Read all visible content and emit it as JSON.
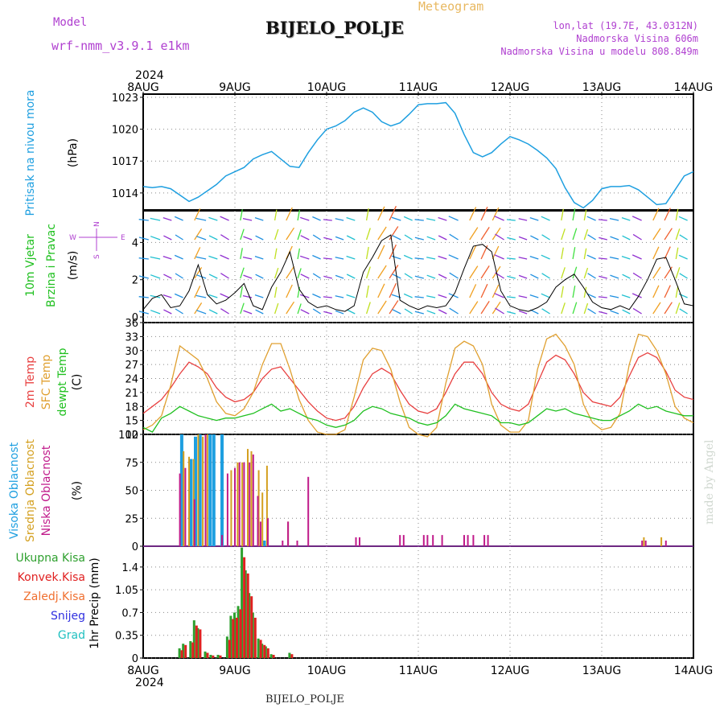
{
  "header": {
    "model_label": "Model",
    "model_name": "wrf-nmm_v3.9.1  e1km",
    "product": "Meteogram",
    "station": "BIJELO_POLJE",
    "coords": "lon,lat (19.7E, 43.0312N)",
    "elevation": "Nadmorska Visina 606m",
    "model_elevation": "Nadmorska Visina u modelu 808.849m",
    "footer_station": "BIJELO_POLJE",
    "credit": "made by Angel"
  },
  "time_axis": {
    "year": "2024",
    "ticks": [
      "8AUG",
      "9AUG",
      "10AUG",
      "11AUG",
      "12AUG",
      "13AUG",
      "14AUG"
    ]
  },
  "colors": {
    "pressure": "#1e9fe0",
    "temp2m": "#e84040",
    "sfc_temp": "#e0a030",
    "dewpoint": "#20c020",
    "high_cloud": "#1e9fe0",
    "mid_cloud": "#d4a020",
    "low_cloud": "#c01a8a",
    "total_precip": "#2ea02e",
    "conv_precip": "#e02020",
    "freezing_precip": "#f07030",
    "snow": "#3030e0",
    "hail": "#20c0c0",
    "wind_label": "#b040d0"
  },
  "chart_data": [
    {
      "type": "line",
      "id": "pressure",
      "ylabel": [
        "Pritisak na nivou mora",
        "(hPa)"
      ],
      "yticks": [
        1014,
        1017,
        1020,
        1023
      ],
      "ylim": [
        1012.4,
        1023.3
      ],
      "x_days": [
        0,
        0.1,
        0.2,
        0.3,
        0.4,
        0.5,
        0.6,
        0.7,
        0.8,
        0.9,
        1.0,
        1.1,
        1.2,
        1.3,
        1.4,
        1.5,
        1.6,
        1.7,
        1.8,
        1.9,
        2.0,
        2.1,
        2.2,
        2.3,
        2.4,
        2.5,
        2.6,
        2.7,
        2.8,
        2.9,
        3.0,
        3.1,
        3.2,
        3.3,
        3.4,
        3.5,
        3.6,
        3.7,
        3.8,
        3.9,
        4.0,
        4.1,
        4.2,
        4.3,
        4.4,
        4.5,
        4.6,
        4.7,
        4.8,
        4.9,
        5.0,
        5.1,
        5.2,
        5.3,
        5.4,
        5.5,
        5.6,
        5.7,
        5.8,
        5.9,
        6.0
      ],
      "series": [
        {
          "values": [
            1014.6,
            1014.5,
            1014.6,
            1014.4,
            1013.8,
            1013.2,
            1013.6,
            1014.2,
            1014.8,
            1015.6,
            1016.0,
            1016.4,
            1017.2,
            1017.6,
            1017.9,
            1017.2,
            1016.5,
            1016.4,
            1017.8,
            1019.0,
            1020.0,
            1020.3,
            1020.8,
            1021.6,
            1022.0,
            1021.6,
            1020.7,
            1020.3,
            1020.6,
            1021.4,
            1022.3,
            1022.4,
            1022.4,
            1022.5,
            1021.5,
            1019.5,
            1017.8,
            1017.4,
            1017.8,
            1018.6,
            1019.3,
            1019.0,
            1018.6,
            1018.0,
            1017.3,
            1016.3,
            1014.5,
            1013.1,
            1012.6,
            1013.3,
            1014.4,
            1014.6,
            1014.6,
            1014.7,
            1014.3,
            1013.6,
            1012.9,
            1013.0,
            1014.3,
            1015.6,
            1016.0
          ]
        }
      ]
    },
    {
      "type": "line",
      "id": "wind",
      "ylabel": [
        "10m Vjetar",
        "Brzina i Pravac",
        "(m/s)"
      ],
      "compass": [
        "N",
        "E",
        "W",
        "S"
      ],
      "yticks": [
        0,
        2,
        4
      ],
      "ylim": [
        -0.3,
        5.7
      ],
      "x_days": [
        0,
        0.1,
        0.2,
        0.3,
        0.4,
        0.5,
        0.6,
        0.7,
        0.8,
        0.9,
        1.0,
        1.1,
        1.2,
        1.3,
        1.4,
        1.5,
        1.6,
        1.7,
        1.8,
        1.9,
        2.0,
        2.1,
        2.2,
        2.3,
        2.4,
        2.5,
        2.6,
        2.7,
        2.8,
        2.9,
        3.0,
        3.1,
        3.2,
        3.3,
        3.4,
        3.5,
        3.6,
        3.7,
        3.8,
        3.9,
        4.0,
        4.1,
        4.2,
        4.3,
        4.4,
        4.5,
        4.6,
        4.7,
        4.8,
        4.9,
        5.0,
        5.1,
        5.2,
        5.3,
        5.4,
        5.5,
        5.6,
        5.7,
        5.8,
        5.9,
        6.0
      ],
      "series": [
        {
          "values": [
            0.4,
            1.0,
            1.2,
            0.5,
            0.6,
            1.4,
            2.8,
            1.2,
            0.7,
            0.9,
            1.3,
            1.8,
            0.6,
            0.4,
            1.6,
            2.4,
            3.5,
            1.5,
            0.8,
            0.5,
            0.6,
            0.4,
            0.3,
            0.6,
            2.4,
            3.2,
            4.1,
            4.4,
            0.9,
            0.6,
            0.4,
            0.6,
            0.5,
            0.6,
            1.3,
            2.6,
            3.8,
            3.9,
            3.5,
            1.4,
            0.6,
            0.4,
            0.3,
            0.5,
            0.8,
            1.6,
            2.0,
            2.3,
            1.6,
            0.8,
            0.5,
            0.4,
            0.6,
            0.4,
            1.1,
            2.0,
            3.1,
            3.2,
            2.0,
            0.7,
            0.6
          ]
        }
      ]
    },
    {
      "type": "line",
      "id": "temperature",
      "ylabel": [
        "2m Temp",
        "SFC Temp",
        "dewpt Temp",
        "(C)"
      ],
      "yticks": [
        12,
        15,
        18,
        21,
        24,
        27,
        30,
        33,
        36
      ],
      "ylim": [
        12,
        36
      ],
      "x_days": [
        0,
        0.1,
        0.2,
        0.3,
        0.4,
        0.5,
        0.6,
        0.7,
        0.8,
        0.9,
        1.0,
        1.1,
        1.2,
        1.3,
        1.4,
        1.5,
        1.6,
        1.7,
        1.8,
        1.9,
        2.0,
        2.1,
        2.2,
        2.3,
        2.4,
        2.5,
        2.6,
        2.7,
        2.8,
        2.9,
        3.0,
        3.1,
        3.2,
        3.3,
        3.4,
        3.5,
        3.6,
        3.7,
        3.8,
        3.9,
        4.0,
        4.1,
        4.2,
        4.3,
        4.4,
        4.5,
        4.6,
        4.7,
        4.8,
        4.9,
        5.0,
        5.1,
        5.2,
        5.3,
        5.4,
        5.5,
        5.6,
        5.7,
        5.8,
        5.9,
        6.0
      ],
      "series": [
        {
          "name": "2m Temp",
          "color_key": "temp2m",
          "values": [
            16.5,
            18.0,
            19.5,
            22.0,
            25.0,
            27.5,
            26.5,
            25.0,
            22.0,
            20.0,
            19.0,
            19.5,
            21.0,
            24.0,
            26.0,
            26.5,
            24.0,
            21.5,
            19.0,
            17.0,
            15.5,
            15.0,
            15.5,
            18.0,
            22.0,
            25.0,
            26.2,
            25.0,
            21.5,
            18.5,
            17.0,
            16.5,
            17.5,
            21.0,
            25.0,
            27.5,
            27.5,
            25.0,
            21.0,
            18.5,
            17.5,
            17.0,
            18.5,
            23.0,
            27.5,
            29.0,
            28.0,
            25.0,
            21.0,
            19.0,
            18.5,
            18.0,
            20.0,
            24.5,
            28.5,
            29.5,
            28.5,
            25.5,
            21.5,
            20.0,
            19.5
          ]
        },
        {
          "name": "SFC Temp",
          "color_key": "sfc_temp",
          "values": [
            13.0,
            14.0,
            16.0,
            22.5,
            31.0,
            29.5,
            28.0,
            24.0,
            19.0,
            16.5,
            16.0,
            17.5,
            21.0,
            27.0,
            31.5,
            31.5,
            26.0,
            19.5,
            15.0,
            12.5,
            12.0,
            12.0,
            13.0,
            20.0,
            28.0,
            30.5,
            30.0,
            26.0,
            19.0,
            13.5,
            12.0,
            11.5,
            13.5,
            23.0,
            30.5,
            32.0,
            31.0,
            27.0,
            18.5,
            14.0,
            12.5,
            12.5,
            15.0,
            26.0,
            32.5,
            33.5,
            31.0,
            27.0,
            18.5,
            14.5,
            13.0,
            13.5,
            16.5,
            27.0,
            33.5,
            33.0,
            30.0,
            25.0,
            18.0,
            15.5,
            14.5
          ]
        },
        {
          "name": "dewpt Temp",
          "color_key": "dewpoint",
          "values": [
            13.5,
            12.5,
            15.5,
            16.5,
            18.0,
            17.0,
            16.0,
            15.5,
            15.0,
            15.5,
            15.5,
            16.0,
            16.5,
            17.5,
            18.5,
            17.0,
            17.5,
            16.5,
            15.5,
            15.0,
            14.0,
            13.5,
            14.0,
            15.0,
            17.0,
            18.0,
            17.5,
            16.5,
            16.0,
            15.5,
            14.5,
            14.0,
            14.5,
            16.0,
            18.5,
            17.5,
            17.0,
            16.5,
            16.0,
            14.5,
            14.5,
            14.0,
            14.5,
            16.0,
            17.5,
            17.0,
            17.5,
            16.5,
            16.0,
            15.5,
            15.0,
            15.0,
            16.0,
            17.0,
            18.5,
            17.5,
            18.0,
            17.0,
            16.5,
            16.0,
            16.0
          ]
        }
      ]
    },
    {
      "type": "bar",
      "id": "cloud",
      "ylabel": [
        "Visoka Oblacnost",
        "Srednja Oblacnost",
        "Niska Oblacnost",
        "(%)"
      ],
      "yticks": [
        0,
        25,
        50,
        75,
        100
      ],
      "ylim": [
        0,
        100
      ],
      "series": [
        {
          "name": "Visoka Oblacnost",
          "color_key": "high_cloud",
          "x_days": [
            0.42,
            0.52,
            0.57,
            0.62,
            0.73,
            0.77,
            0.86,
            0.98,
            1.22,
            1.32
          ],
          "values": [
            100,
            78,
            98,
            100,
            100,
            100,
            100,
            0,
            0,
            5
          ]
        },
        {
          "name": "Srednja Oblacnost",
          "color_key": "mid_cloud",
          "x_days": [
            0.44,
            0.5,
            0.55,
            0.6,
            0.65,
            0.7,
            0.96,
            1.03,
            1.08,
            1.14,
            1.18,
            1.26,
            1.3,
            1.35,
            1.58,
            5.46,
            5.65
          ],
          "values": [
            85,
            80,
            78,
            100,
            98,
            100,
            68,
            75,
            75,
            87,
            85,
            68,
            48,
            72,
            22,
            8,
            8
          ]
        },
        {
          "name": "Niska Oblacnost",
          "color_key": "low_cloud",
          "x_days": [
            0.4,
            0.46,
            0.56,
            0.68,
            0.86,
            0.92,
            1.0,
            1.05,
            1.1,
            1.16,
            1.2,
            1.25,
            1.28,
            1.36,
            1.52,
            1.58,
            1.68,
            1.8,
            2.32,
            2.36,
            2.8,
            2.84,
            3.06,
            3.1,
            3.16,
            3.26,
            3.5,
            3.54,
            3.6,
            3.72,
            3.76,
            5.44,
            5.48,
            5.7
          ],
          "values": [
            65,
            70,
            42,
            100,
            10,
            65,
            70,
            75,
            75,
            75,
            82,
            45,
            22,
            25,
            5,
            22,
            5,
            62,
            8,
            8,
            10,
            10,
            10,
            10,
            10,
            10,
            10,
            10,
            10,
            10,
            10,
            5,
            5,
            5
          ]
        }
      ]
    },
    {
      "type": "bar",
      "id": "precip",
      "ylabel": [
        "1hr Precip (mm)"
      ],
      "legend": [
        "Ukupna Kisa",
        "Konvek.Kisa",
        "Zaledj.Kisa",
        "Snijeg",
        "Grad"
      ],
      "yticks": [
        0,
        0.35,
        0.7,
        1.05,
        1.4
      ],
      "ylim": [
        0,
        1.72
      ],
      "x_days": [
        0.4,
        0.44,
        0.52,
        0.56,
        0.6,
        0.68,
        0.74,
        0.82,
        0.92,
        0.96,
        1.0,
        1.04,
        1.08,
        1.12,
        1.16,
        1.2,
        1.26,
        1.3,
        1.34,
        1.4,
        1.6
      ],
      "series": [
        {
          "name": "Ukupna Kisa",
          "color_key": "total_precip",
          "values": [
            0.15,
            0.22,
            0.26,
            0.58,
            0.46,
            0.1,
            0.05,
            0.05,
            0.33,
            0.65,
            0.7,
            0.8,
            1.7,
            1.35,
            1.0,
            0.7,
            0.3,
            0.22,
            0.18,
            0.06,
            0.08
          ]
        },
        {
          "name": "Konvek.Kisa",
          "color_key": "conv_precip",
          "values": [
            0.12,
            0.2,
            0.24,
            0.5,
            0.44,
            0.08,
            0.04,
            0.04,
            0.28,
            0.6,
            0.62,
            0.75,
            1.55,
            1.3,
            0.95,
            0.62,
            0.28,
            0.2,
            0.15,
            0.05,
            0.06
          ]
        }
      ]
    }
  ]
}
